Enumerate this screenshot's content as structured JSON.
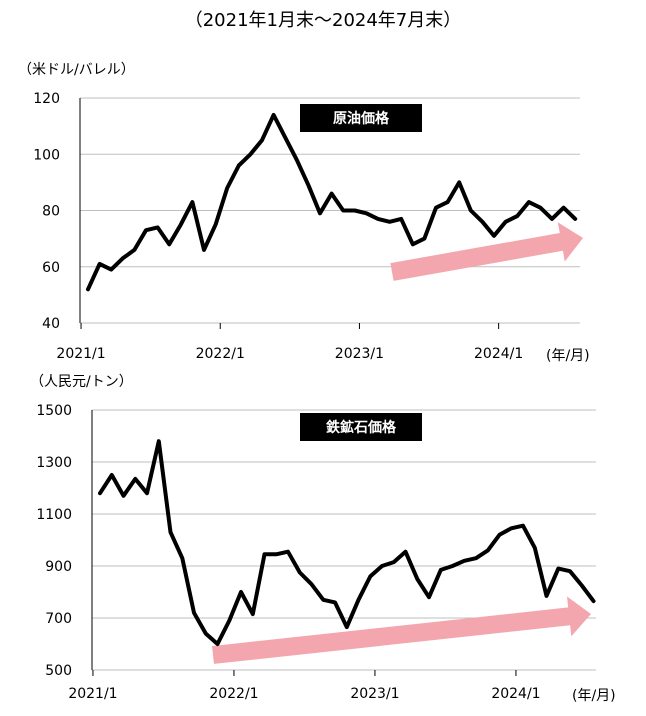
{
  "page_title": "（2021年1月末～2024年7月末）",
  "colors": {
    "line": "#000000",
    "grid": "#bfbfbf",
    "arrow": "#f4a6ae",
    "badge_bg": "#000000",
    "badge_text": "#ffffff"
  },
  "chart_data": [
    {
      "type": "line",
      "title": "原油価格",
      "ylabel": "（米ドル/バレル）",
      "xlabel": "(年/月)",
      "ylim": [
        40,
        120
      ],
      "yticks": [
        "40",
        "60",
        "80",
        "100",
        "120"
      ],
      "xticks": [
        {
          "label": "2021/1",
          "x": "2021-01"
        },
        {
          "label": "2022/1",
          "x": "2022-01"
        },
        {
          "label": "2023/1",
          "x": "2023-01"
        },
        {
          "label": "2024/1",
          "x": "2024-01"
        }
      ],
      "grid": true,
      "annotation": "upward trend arrow",
      "series": [
        {
          "x": [
            "2021-01",
            "2021-02",
            "2021-03",
            "2021-04",
            "2021-05",
            "2021-06",
            "2021-07",
            "2021-08",
            "2021-09",
            "2021-10",
            "2021-11",
            "2021-12",
            "2022-01",
            "2022-02",
            "2022-03",
            "2022-04",
            "2022-05",
            "2022-06",
            "2022-07",
            "2022-08",
            "2022-09",
            "2022-10",
            "2022-11",
            "2022-12",
            "2023-01",
            "2023-02",
            "2023-03",
            "2023-04",
            "2023-05",
            "2023-06",
            "2023-07",
            "2023-08",
            "2023-09",
            "2023-10",
            "2023-11",
            "2023-12",
            "2024-01",
            "2024-02",
            "2024-03",
            "2024-04",
            "2024-05",
            "2024-06",
            "2024-07"
          ],
          "values": [
            52,
            61,
            59,
            63,
            66,
            73,
            74,
            68,
            75,
            83,
            66,
            75,
            88,
            96,
            100,
            105,
            114,
            106,
            98,
            89,
            79,
            86,
            80,
            80,
            79,
            77,
            76,
            77,
            68,
            70,
            81,
            83,
            90,
            80,
            76,
            71,
            76,
            78,
            83,
            81,
            77,
            81,
            77
          ]
        }
      ]
    },
    {
      "type": "line",
      "title": "鉄鉱石価格",
      "ylabel": "（人民元/トン）",
      "xlabel": "(年/月)",
      "ylim": [
        500,
        1500
      ],
      "yticks": [
        "500",
        "700",
        "900",
        "1100",
        "1300",
        "1500"
      ],
      "xticks": [
        {
          "label": "2021/1",
          "x": "2021-01"
        },
        {
          "label": "2022/1",
          "x": "2022-01"
        },
        {
          "label": "2023/1",
          "x": "2023-01"
        },
        {
          "label": "2024/1",
          "x": "2024-01"
        }
      ],
      "grid": true,
      "annotation": "upward trend arrow",
      "series": [
        {
          "x": [
            "2021-01",
            "2021-02",
            "2021-03",
            "2021-04",
            "2021-05",
            "2021-06",
            "2021-07",
            "2021-08",
            "2021-09",
            "2021-10",
            "2021-11",
            "2021-12",
            "2022-01",
            "2022-02",
            "2022-03",
            "2022-04",
            "2022-05",
            "2022-06",
            "2022-07",
            "2022-08",
            "2022-09",
            "2022-10",
            "2022-11",
            "2022-12",
            "2023-01",
            "2023-02",
            "2023-03",
            "2023-04",
            "2023-05",
            "2023-06",
            "2023-07",
            "2023-08",
            "2023-09",
            "2023-10",
            "2023-11",
            "2023-12",
            "2024-01",
            "2024-02",
            "2024-03",
            "2024-04",
            "2024-05",
            "2024-06",
            "2024-07"
          ],
          "values": [
            1180,
            1250,
            1170,
            1235,
            1180,
            1380,
            1030,
            930,
            720,
            640,
            600,
            690,
            800,
            715,
            945,
            945,
            955,
            875,
            830,
            770,
            760,
            665,
            770,
            860,
            900,
            915,
            955,
            850,
            780,
            885,
            900,
            920,
            930,
            960,
            1020,
            1045,
            1055,
            970,
            785,
            890,
            880,
            825,
            765
          ]
        }
      ]
    }
  ]
}
